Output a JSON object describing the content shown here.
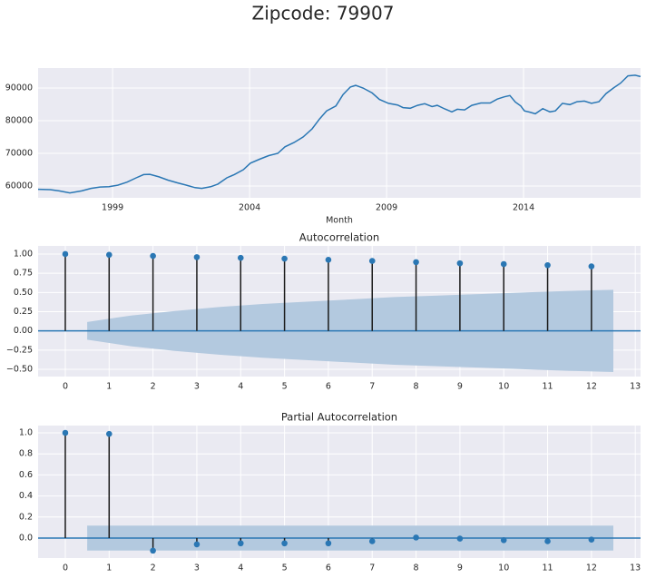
{
  "title": "Zipcode: 79907",
  "chart_data": [
    {
      "type": "line",
      "x_label": "Month",
      "color": "#2a77b4",
      "grid": true,
      "x": [
        1996.28,
        1996.72,
        1997.05,
        1997.44,
        1997.87,
        1998.21,
        1998.54,
        1998.87,
        1999.2,
        1999.53,
        1999.86,
        2000.13,
        2000.36,
        2000.69,
        2001.02,
        2001.35,
        2001.68,
        2002.01,
        2002.25,
        2002.58,
        2002.84,
        2003.17,
        2003.44,
        2003.77,
        2004.03,
        2004.36,
        2004.7,
        2005.03,
        2005.29,
        2005.62,
        2005.95,
        2006.28,
        2006.55,
        2006.81,
        2007.15,
        2007.41,
        2007.68,
        2007.87,
        2008.14,
        2008.47,
        2008.74,
        2009.07,
        2009.4,
        2009.6,
        2009.86,
        2010.13,
        2010.39,
        2010.66,
        2010.85,
        2011.12,
        2011.38,
        2011.58,
        2011.85,
        2012.11,
        2012.44,
        2012.78,
        2013.04,
        2013.3,
        2013.5,
        2013.7,
        2013.9,
        2014.03,
        2014.23,
        2014.43,
        2014.7,
        2014.96,
        2015.16,
        2015.42,
        2015.69,
        2015.95,
        2016.22,
        2016.48,
        2016.75,
        2017.01,
        2017.28,
        2017.54,
        2017.81,
        2018.07,
        2018.27
      ],
      "values": [
        59000,
        58900,
        58500,
        57900,
        58500,
        59300,
        59700,
        59800,
        60300,
        61200,
        62500,
        63500,
        63600,
        62800,
        61800,
        61000,
        60300,
        59500,
        59300,
        59800,
        60600,
        62500,
        63500,
        65000,
        67000,
        68200,
        69300,
        70000,
        72000,
        73300,
        75000,
        77500,
        80500,
        83000,
        84500,
        88000,
        90300,
        90800,
        90000,
        88500,
        86500,
        85300,
        84800,
        84000,
        83800,
        84700,
        85200,
        84300,
        84700,
        83600,
        82700,
        83500,
        83300,
        84700,
        85400,
        85400,
        86600,
        87300,
        87700,
        85700,
        84500,
        83000,
        82600,
        82100,
        83700,
        82700,
        83000,
        85300,
        84900,
        85800,
        86000,
        85300,
        85800,
        88300,
        90000,
        91500,
        93700,
        93900,
        93500
      ],
      "xlim": [
        1996.28,
        2018.27
      ],
      "xticks": [
        1999,
        2004,
        2009,
        2014
      ],
      "ylim": [
        56400,
        96100
      ],
      "yticks": [
        60000,
        70000,
        80000,
        90000
      ]
    },
    {
      "type": "stem",
      "title": "Autocorrelation",
      "color": "#2a77b4",
      "stem_color": "#1a1a1a",
      "band_color": "#b3c9df",
      "grid": true,
      "x": [
        0,
        1,
        2,
        3,
        4,
        5,
        6,
        7,
        8,
        9,
        10,
        11,
        12
      ],
      "values": [
        1.0,
        0.99,
        0.975,
        0.96,
        0.95,
        0.94,
        0.925,
        0.91,
        0.895,
        0.88,
        0.87,
        0.855,
        0.84
      ],
      "band": {
        "x": [
          0.5,
          1.5,
          2.5,
          3.5,
          4.5,
          5.5,
          6.5,
          7.5,
          8.5,
          9.5,
          10.5,
          11.5,
          12.5
        ],
        "values": [
          0.115,
          0.2,
          0.26,
          0.31,
          0.35,
          0.38,
          0.41,
          0.44,
          0.46,
          0.48,
          0.5,
          0.52,
          0.535
        ]
      },
      "xlim": [
        -0.62,
        13.12
      ],
      "xticks": [
        0,
        1,
        2,
        3,
        4,
        5,
        6,
        7,
        8,
        9,
        10,
        11,
        12,
        13
      ],
      "ylim": [
        -0.594,
        1.106
      ],
      "yticks": [
        {
          "value": -0.5,
          "label": "−0.50"
        },
        {
          "value": -0.25,
          "label": "−0.25"
        },
        {
          "value": 0,
          "label": "0.00"
        },
        {
          "value": 0.25,
          "label": "0.25"
        },
        {
          "value": 0.5,
          "label": "0.50"
        },
        {
          "value": 0.75,
          "label": "0.75"
        },
        {
          "value": 1,
          "label": "1.00"
        }
      ]
    },
    {
      "type": "stem",
      "title": "Partial Autocorrelation",
      "color": "#2a77b4",
      "stem_color": "#1a1a1a",
      "band_color": "#b3c9df",
      "grid": true,
      "x": [
        0,
        1,
        2,
        3,
        4,
        5,
        6,
        7,
        8,
        9,
        10,
        11,
        12
      ],
      "values": [
        1.0,
        0.99,
        -0.12,
        -0.06,
        -0.05,
        -0.05,
        -0.05,
        -0.03,
        0.005,
        -0.005,
        -0.02,
        -0.03,
        -0.015
      ],
      "band": {
        "x": [
          0.5,
          1.5,
          2.5,
          3.5,
          4.5,
          5.5,
          6.5,
          7.5,
          8.5,
          9.5,
          10.5,
          11.5,
          12.5
        ],
        "values": [
          0.118,
          0.118,
          0.118,
          0.118,
          0.118,
          0.118,
          0.118,
          0.118,
          0.118,
          0.118,
          0.118,
          0.118,
          0.118
        ]
      },
      "xlim": [
        -0.62,
        13.12
      ],
      "xticks": [
        0,
        1,
        2,
        3,
        4,
        5,
        6,
        7,
        8,
        9,
        10,
        11,
        12,
        13
      ],
      "ylim": [
        -0.19,
        1.069
      ],
      "yticks": [
        {
          "value": 0,
          "label": "0.0"
        },
        {
          "value": 0.2,
          "label": "0.2"
        },
        {
          "value": 0.4,
          "label": "0.4"
        },
        {
          "value": 0.6,
          "label": "0.6"
        },
        {
          "value": 0.8,
          "label": "0.8"
        },
        {
          "value": 1,
          "label": "1.0"
        }
      ]
    }
  ]
}
